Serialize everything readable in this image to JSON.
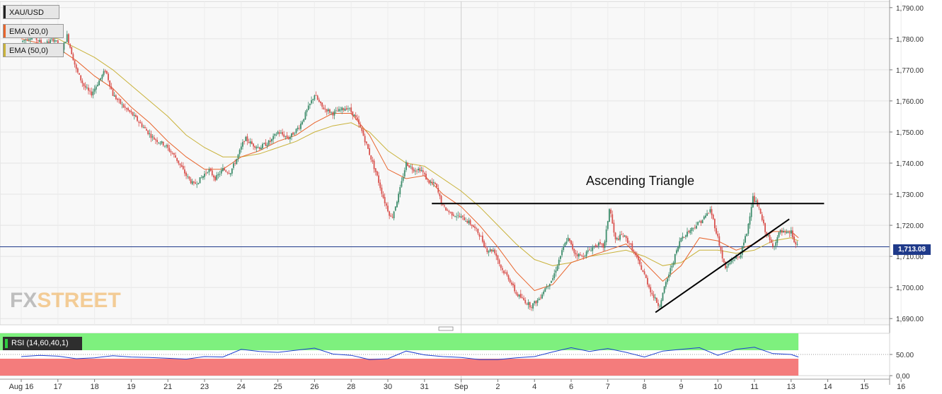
{
  "chart_data": [
    {
      "type": "candlestick",
      "symbol": "XAU/USD",
      "indicators": [
        "EMA (20,0)",
        "EMA (50,0)"
      ],
      "ylim": [
        1688,
        1792
      ],
      "yticks": [
        "1,690.00",
        "1,700.00",
        "1,710.00",
        "1,720.00",
        "1,730.00",
        "1,740.00",
        "1,750.00",
        "1,760.00",
        "1,770.00",
        "1,780.00",
        "1,790.00"
      ],
      "xticks": [
        "Aug 16",
        "17",
        "18",
        "19",
        "21",
        "23",
        "24",
        "25",
        "26",
        "28",
        "30",
        "31",
        "Sep",
        "2",
        "4",
        "6",
        "7",
        "8",
        "9",
        "10",
        "11",
        "13",
        "14",
        "15",
        "16"
      ],
      "last_price": "1,713.08",
      "annotation": "Ascending Triangle",
      "price_path": [
        [
          0,
          1779
        ],
        [
          0.3,
          1781
        ],
        [
          0.6,
          1778
        ],
        [
          0.9,
          1780
        ],
        [
          1.1,
          1776
        ],
        [
          1.25,
          1781
        ],
        [
          1.5,
          1770
        ],
        [
          1.7,
          1765
        ],
        [
          1.9,
          1762
        ],
        [
          2.1,
          1766
        ],
        [
          2.3,
          1770
        ],
        [
          2.5,
          1762
        ],
        [
          2.8,
          1758
        ],
        [
          3.0,
          1756
        ],
        [
          3.3,
          1752
        ],
        [
          3.6,
          1748
        ],
        [
          3.9,
          1746
        ],
        [
          4.2,
          1742
        ],
        [
          4.5,
          1736
        ],
        [
          4.7,
          1733
        ],
        [
          4.9,
          1735
        ],
        [
          5.1,
          1738
        ],
        [
          5.3,
          1735
        ],
        [
          5.5,
          1738
        ],
        [
          5.7,
          1737
        ],
        [
          5.9,
          1742
        ],
        [
          6.1,
          1748
        ],
        [
          6.3,
          1746
        ],
        [
          6.5,
          1745
        ],
        [
          6.8,
          1747
        ],
        [
          7.0,
          1750
        ],
        [
          7.3,
          1748
        ],
        [
          7.6,
          1752
        ],
        [
          7.8,
          1757
        ],
        [
          8.0,
          1762
        ],
        [
          8.2,
          1758
        ],
        [
          8.5,
          1756
        ],
        [
          8.7,
          1757
        ],
        [
          8.9,
          1758
        ],
        [
          9.1,
          1755
        ],
        [
          9.3,
          1750
        ],
        [
          9.5,
          1743
        ],
        [
          9.7,
          1736
        ],
        [
          9.9,
          1728
        ],
        [
          10.1,
          1722
        ],
        [
          10.3,
          1730
        ],
        [
          10.5,
          1740
        ],
        [
          10.7,
          1738
        ],
        [
          10.9,
          1738
        ],
        [
          11.1,
          1734
        ],
        [
          11.3,
          1733
        ],
        [
          11.5,
          1726
        ],
        [
          11.7,
          1724
        ],
        [
          11.9,
          1723
        ],
        [
          12.1,
          1722
        ],
        [
          12.3,
          1720
        ],
        [
          12.5,
          1717
        ],
        [
          12.7,
          1712
        ],
        [
          12.9,
          1712
        ],
        [
          13.1,
          1706
        ],
        [
          13.3,
          1703
        ],
        [
          13.5,
          1698
        ],
        [
          13.7,
          1696
        ],
        [
          13.9,
          1694
        ],
        [
          14.1,
          1696
        ],
        [
          14.3,
          1700
        ],
        [
          14.5,
          1703
        ],
        [
          14.7,
          1710
        ],
        [
          14.9,
          1716
        ],
        [
          15.1,
          1711
        ],
        [
          15.3,
          1710
        ],
        [
          15.5,
          1712
        ],
        [
          15.7,
          1714
        ],
        [
          15.9,
          1713
        ],
        [
          16.05,
          1726
        ],
        [
          16.2,
          1715
        ],
        [
          16.4,
          1717
        ],
        [
          16.6,
          1714
        ],
        [
          16.8,
          1709
        ],
        [
          17.0,
          1704
        ],
        [
          17.2,
          1698
        ],
        [
          17.4,
          1694
        ],
        [
          17.6,
          1702
        ],
        [
          17.8,
          1709
        ],
        [
          18.0,
          1716
        ],
        [
          18.2,
          1718
        ],
        [
          18.4,
          1720
        ],
        [
          18.6,
          1722
        ],
        [
          18.8,
          1725
        ],
        [
          19.0,
          1716
        ],
        [
          19.2,
          1706
        ],
        [
          19.4,
          1709
        ],
        [
          19.6,
          1710
        ],
        [
          19.8,
          1718
        ],
        [
          19.95,
          1729
        ],
        [
          20.1,
          1726
        ],
        [
          20.3,
          1718
        ],
        [
          20.5,
          1713
        ],
        [
          20.7,
          1718
        ],
        [
          20.9,
          1717
        ],
        [
          21.0,
          1718
        ],
        [
          21.1,
          1714
        ],
        [
          21.2,
          1713
        ]
      ],
      "ema20_path": [
        [
          0,
          1780
        ],
        [
          1,
          1777
        ],
        [
          1.5,
          1773
        ],
        [
          2,
          1768
        ],
        [
          2.5,
          1764
        ],
        [
          3,
          1758
        ],
        [
          3.5,
          1753
        ],
        [
          4,
          1747
        ],
        [
          4.5,
          1742
        ],
        [
          5,
          1738
        ],
        [
          5.5,
          1738
        ],
        [
          6,
          1742
        ],
        [
          6.5,
          1744
        ],
        [
          7,
          1747
        ],
        [
          7.5,
          1749
        ],
        [
          8,
          1753
        ],
        [
          8.5,
          1756
        ],
        [
          9,
          1756
        ],
        [
          9.5,
          1749
        ],
        [
          10,
          1738
        ],
        [
          10.5,
          1735
        ],
        [
          11,
          1736
        ],
        [
          11.5,
          1730
        ],
        [
          12,
          1726
        ],
        [
          12.5,
          1720
        ],
        [
          13,
          1713
        ],
        [
          13.5,
          1705
        ],
        [
          14,
          1699
        ],
        [
          14.5,
          1701
        ],
        [
          15,
          1708
        ],
        [
          15.5,
          1710
        ],
        [
          16,
          1712
        ],
        [
          16.5,
          1714
        ],
        [
          17,
          1708
        ],
        [
          17.5,
          1702
        ],
        [
          18,
          1707
        ],
        [
          18.5,
          1716
        ],
        [
          19,
          1715
        ],
        [
          19.5,
          1712
        ],
        [
          20,
          1714
        ],
        [
          20.5,
          1718
        ],
        [
          21,
          1718
        ],
        [
          21.2,
          1716
        ]
      ],
      "ema50_path": [
        [
          0,
          1782
        ],
        [
          1,
          1780
        ],
        [
          1.5,
          1777
        ],
        [
          2,
          1774
        ],
        [
          2.5,
          1770
        ],
        [
          3,
          1765
        ],
        [
          3.5,
          1760
        ],
        [
          4,
          1755
        ],
        [
          4.5,
          1749
        ],
        [
          5,
          1745
        ],
        [
          5.5,
          1742
        ],
        [
          6,
          1742
        ],
        [
          6.5,
          1743
        ],
        [
          7,
          1745
        ],
        [
          7.5,
          1747
        ],
        [
          8,
          1750
        ],
        [
          8.5,
          1752
        ],
        [
          9,
          1753
        ],
        [
          9.5,
          1750
        ],
        [
          10,
          1744
        ],
        [
          10.5,
          1740
        ],
        [
          11,
          1739
        ],
        [
          11.5,
          1735
        ],
        [
          12,
          1731
        ],
        [
          12.5,
          1726
        ],
        [
          13,
          1720
        ],
        [
          13.5,
          1714
        ],
        [
          14,
          1709
        ],
        [
          14.5,
          1707
        ],
        [
          15,
          1708
        ],
        [
          15.5,
          1710
        ],
        [
          16,
          1711
        ],
        [
          16.5,
          1712
        ],
        [
          17,
          1710
        ],
        [
          17.5,
          1707
        ],
        [
          18,
          1708
        ],
        [
          18.5,
          1712
        ],
        [
          19,
          1712
        ],
        [
          19.5,
          1711
        ],
        [
          20,
          1712
        ],
        [
          20.5,
          1715
        ],
        [
          21,
          1716
        ],
        [
          21.2,
          1715
        ]
      ],
      "resistance_line": [
        [
          11.2,
          1727
        ],
        [
          21.9,
          1727
        ]
      ],
      "support_line": [
        [
          17.3,
          1692
        ],
        [
          20.95,
          1722
        ]
      ]
    },
    {
      "type": "line",
      "title": "RSI (14,60,40,1)",
      "ylim": [
        0,
        100
      ],
      "yticks": [
        "0.00",
        "50.00"
      ],
      "overbought": 60,
      "oversold": 40,
      "series": [
        {
          "values": [
            [
              0,
              45
            ],
            [
              0.5,
              48
            ],
            [
              1,
              46
            ],
            [
              1.5,
              40
            ],
            [
              2,
              42
            ],
            [
              2.5,
              47
            ],
            [
              3,
              44
            ],
            [
              3.5,
              43
            ],
            [
              4,
              41
            ],
            [
              4.5,
              39
            ],
            [
              5,
              45
            ],
            [
              5.5,
              44
            ],
            [
              6,
              62
            ],
            [
              6.5,
              57
            ],
            [
              7,
              55
            ],
            [
              7.5,
              60
            ],
            [
              8,
              65
            ],
            [
              8.5,
              51
            ],
            [
              9,
              48
            ],
            [
              9.5,
              38
            ],
            [
              10,
              40
            ],
            [
              10.5,
              58
            ],
            [
              11,
              49
            ],
            [
              11.5,
              45
            ],
            [
              12,
              43
            ],
            [
              12.5,
              38
            ],
            [
              13,
              38
            ],
            [
              13.5,
              42
            ],
            [
              14,
              45
            ],
            [
              14.5,
              56
            ],
            [
              15,
              66
            ],
            [
              15.5,
              57
            ],
            [
              16,
              64
            ],
            [
              16.5,
              55
            ],
            [
              17,
              44
            ],
            [
              17.5,
              58
            ],
            [
              18,
              62
            ],
            [
              18.5,
              66
            ],
            [
              19,
              48
            ],
            [
              19.5,
              62
            ],
            [
              20,
              67
            ],
            [
              20.5,
              52
            ],
            [
              21,
              50
            ],
            [
              21.2,
              44
            ]
          ]
        }
      ]
    }
  ]
}
